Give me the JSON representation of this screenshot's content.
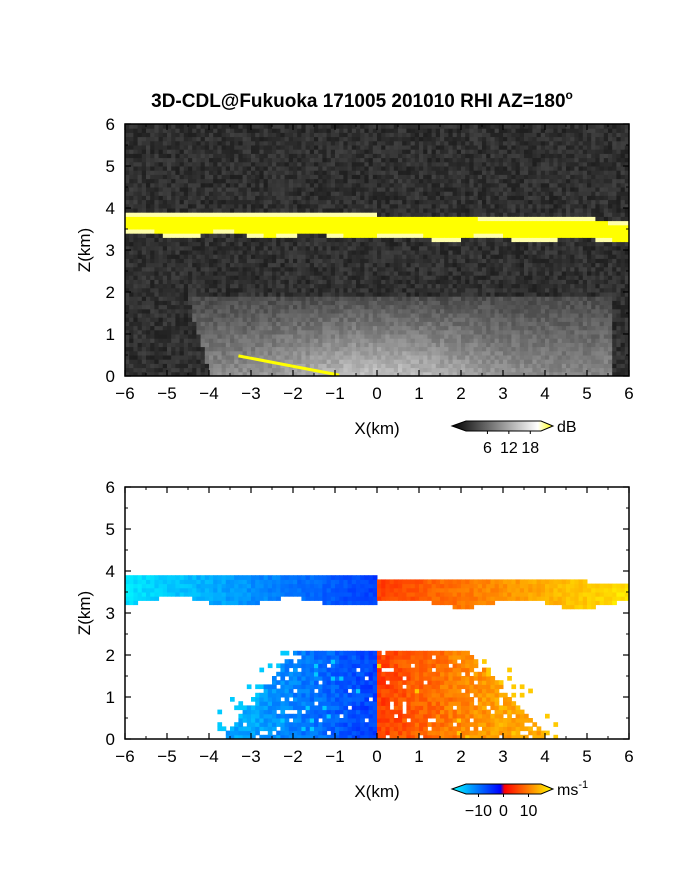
{
  "chart_data": [
    {
      "type": "heatmap",
      "title_main": "3D-CDL@Fukuoka 171005 201010 RHI AZ=180",
      "title_sup": "o",
      "xlabel": "X(km)",
      "ylabel": "Z(km)",
      "xlim": [
        -6,
        6
      ],
      "ylim": [
        0,
        6
      ],
      "xticks": [
        "-6",
        "-5",
        "-4",
        "-3",
        "-2",
        "-1",
        "0",
        "1",
        "2",
        "3",
        "4",
        "5",
        "6"
      ],
      "yticks": [
        "0",
        "1",
        "2",
        "3",
        "4",
        "5",
        "6"
      ],
      "quantity": "backscatter intensity",
      "colorbar": {
        "unit": "dB",
        "ticks": [
          "6",
          "12",
          "18"
        ],
        "tick_values": [
          6,
          12,
          18
        ],
        "range": [
          0,
          21
        ],
        "colors": [
          "#000000",
          "#ffffff",
          "#ffff00"
        ]
      },
      "features": [
        {
          "kind": "cloud_layer",
          "z_bottom_km": 3.3,
          "z_top_km": 3.85,
          "x_range_km": [
            -6,
            6
          ],
          "color": "#ffff00"
        },
        {
          "kind": "boundary_layer",
          "z_top_km": 1.9,
          "x_range_km": [
            -4,
            5.5
          ],
          "color": "#bbbbbb"
        }
      ]
    },
    {
      "type": "heatmap",
      "xlabel": "X(km)",
      "ylabel": "Z(km)",
      "xlim": [
        -6,
        6
      ],
      "ylim": [
        0,
        6
      ],
      "xticks": [
        "-6",
        "-5",
        "-4",
        "-3",
        "-2",
        "-1",
        "0",
        "1",
        "2",
        "3",
        "4",
        "5",
        "6"
      ],
      "yticks": [
        "0",
        "1",
        "2",
        "3",
        "4",
        "5",
        "6"
      ],
      "quantity": "Doppler velocity",
      "colorbar": {
        "unit": "ms",
        "unit_sup": "-1",
        "ticks": [
          "-10",
          "0",
          "10"
        ],
        "tick_values": [
          -10,
          0,
          10
        ],
        "range": [
          -15,
          15
        ],
        "colors": [
          "#00ffff",
          "#0000ff",
          "#ff0000",
          "#ffff00"
        ]
      },
      "features": [
        {
          "kind": "cloud_layer_velocity",
          "z_bottom_km": 3.1,
          "z_top_km": 3.85,
          "x_range_km": [
            -6,
            6
          ],
          "left_value": -12,
          "right_value": 12
        },
        {
          "kind": "boundary_layer_velocity",
          "z_top_km": 2.1,
          "x_range_km": [
            -3.5,
            4.5
          ],
          "left_value": -7,
          "right_value": 7
        }
      ]
    }
  ]
}
